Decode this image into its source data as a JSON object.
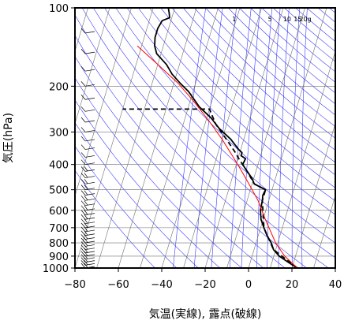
{
  "chart_data": {
    "type": "line",
    "subtype": "skew-T log-P thermodynamic diagram",
    "xlabel": "気温(実線), 露点(破線)",
    "ylabel": "気圧(hPa)",
    "xlim": [
      -80,
      40
    ],
    "ylim": [
      1000,
      100
    ],
    "y_scale": "log",
    "x_ticks": [
      -80,
      -60,
      -40,
      -20,
      0,
      20,
      40
    ],
    "y_ticks": [
      100,
      200,
      300,
      400,
      500,
      600,
      700,
      800,
      900,
      1000
    ],
    "grid": true,
    "mixing_ratio_labels": [
      "1",
      "5",
      "10",
      "15",
      "20g"
    ],
    "mixing_ratio_values": [
      1,
      5,
      10,
      15,
      20
    ],
    "colors": {
      "grid": "#6f6f6f",
      "reference_lines": "#3a3aff",
      "parcel": "#ff0000",
      "profile": "#000000"
    },
    "series": [
      {
        "style": "solid",
        "color": "#000000",
        "points": [
          {
            "t": 22.5,
            "p": 1000
          },
          {
            "t": 20,
            "p": 975
          },
          {
            "t": 17.5,
            "p": 950
          },
          {
            "t": 15,
            "p": 925
          },
          {
            "t": 12.5,
            "p": 900
          },
          {
            "t": 9,
            "p": 850
          },
          {
            "t": 7,
            "p": 800
          },
          {
            "t": 4,
            "p": 750
          },
          {
            "t": 1.5,
            "p": 700
          },
          {
            "t": -1,
            "p": 650
          },
          {
            "t": -2.5,
            "p": 600
          },
          {
            "t": -3,
            "p": 550
          },
          {
            "t": -3.5,
            "p": 525
          },
          {
            "t": -3,
            "p": 500
          },
          {
            "t": -9,
            "p": 475
          },
          {
            "t": -11,
            "p": 450
          },
          {
            "t": -14,
            "p": 425
          },
          {
            "t": -17,
            "p": 400
          },
          {
            "t": -16.5,
            "p": 380
          },
          {
            "t": -19,
            "p": 370
          },
          {
            "t": -19,
            "p": 360
          },
          {
            "t": -21,
            "p": 350
          },
          {
            "t": -26,
            "p": 320
          },
          {
            "t": -33,
            "p": 290
          },
          {
            "t": -38,
            "p": 265
          },
          {
            "t": -45,
            "p": 240
          },
          {
            "t": -52,
            "p": 210
          },
          {
            "t": -57,
            "p": 195
          },
          {
            "t": -62,
            "p": 180
          },
          {
            "t": -66,
            "p": 165
          },
          {
            "t": -72,
            "p": 150
          },
          {
            "t": -74,
            "p": 140
          },
          {
            "t": -75,
            "p": 130
          },
          {
            "t": -75,
            "p": 120
          },
          {
            "t": -74,
            "p": 112
          },
          {
            "t": -71,
            "p": 109
          },
          {
            "t": -72,
            "p": 104
          },
          {
            "t": -73,
            "p": 100
          }
        ]
      },
      {
        "style": "dashed",
        "color": "#000000",
        "points": [
          {
            "t": 22.5,
            "p": 1000
          },
          {
            "t": 9,
            "p": 850
          },
          {
            "t": 1.5,
            "p": 700
          },
          {
            "t": -3,
            "p": 550
          },
          {
            "t": -3,
            "p": 500
          },
          {
            "t": -9,
            "p": 475
          },
          {
            "t": -14,
            "p": 425
          },
          {
            "t": -19,
            "p": 385
          },
          {
            "t": -22,
            "p": 360
          },
          {
            "t": -28,
            "p": 320
          },
          {
            "t": -35,
            "p": 280
          },
          {
            "t": -40,
            "p": 245
          },
          {
            "t": -80,
            "p": 245
          }
        ]
      },
      {
        "style": "solid",
        "color": "#ff0000",
        "points": [
          {
            "t": 22.5,
            "p": 1000
          },
          {
            "t": 15,
            "p": 900
          },
          {
            "t": 9,
            "p": 800
          },
          {
            "t": 1,
            "p": 650
          },
          {
            "t": -5,
            "p": 550
          },
          {
            "t": -11,
            "p": 480
          },
          {
            "t": -17,
            "p": 420
          },
          {
            "t": -23,
            "p": 370
          },
          {
            "t": -30,
            "p": 320
          },
          {
            "t": -38,
            "p": 275
          },
          {
            "t": -48,
            "p": 230
          },
          {
            "t": -58,
            "p": 195
          },
          {
            "t": -70,
            "p": 165
          },
          {
            "t": -82,
            "p": 140
          }
        ]
      }
    ]
  }
}
